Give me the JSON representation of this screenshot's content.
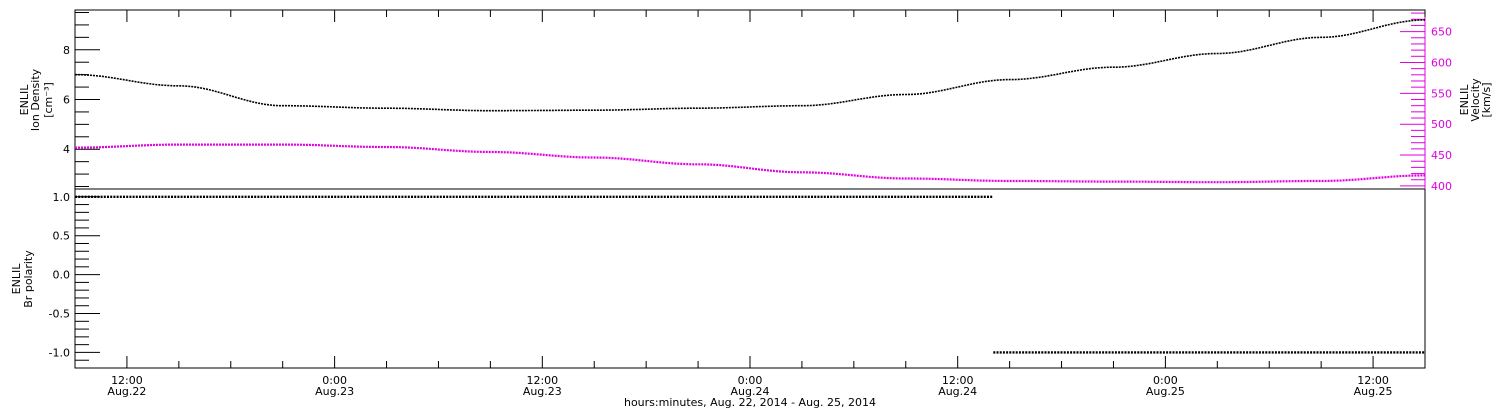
{
  "chart_data": [
    {
      "type": "line",
      "panel": "top",
      "ylabel": [
        "ENLIL",
        "Ion Density",
        "[cm⁻³]"
      ],
      "ylabel_right": [
        "ENLIL",
        "Velocity",
        "[km/s]"
      ],
      "ylim": [
        2.4,
        9.6
      ],
      "ylim_right": [
        395,
        685
      ],
      "yticks": [
        4,
        6,
        8
      ],
      "yticks_right": [
        400,
        450,
        500,
        550,
        600,
        650
      ],
      "colors": {
        "density": "#000000",
        "velocity": "#e000e0"
      },
      "series": [
        {
          "axis": "left",
          "x": [
            "2014-08-22 09:00",
            "2014-08-22 15:00",
            "2014-08-22 21:00",
            "2014-08-23 03:00",
            "2014-08-23 09:00",
            "2014-08-23 15:00",
            "2014-08-23 21:00",
            "2014-08-24 03:00",
            "2014-08-24 09:00",
            "2014-08-24 15:00",
            "2014-08-24 21:00",
            "2014-08-25 03:00",
            "2014-08-25 09:00",
            "2014-08-25 15:00"
          ],
          "values": [
            7.0,
            6.55,
            5.75,
            5.65,
            5.55,
            5.57,
            5.65,
            5.75,
            6.2,
            6.8,
            7.3,
            7.85,
            8.5,
            9.2
          ]
        },
        {
          "axis": "right",
          "x": [
            "2014-08-22 09:00",
            "2014-08-22 15:00",
            "2014-08-22 21:00",
            "2014-08-23 03:00",
            "2014-08-23 09:00",
            "2014-08-23 15:00",
            "2014-08-23 21:00",
            "2014-08-24 03:00",
            "2014-08-24 09:00",
            "2014-08-24 15:00",
            "2014-08-24 21:00",
            "2014-08-25 03:00",
            "2014-08-25 09:00",
            "2014-08-25 15:00"
          ],
          "values": [
            462,
            467,
            467,
            463,
            455,
            446,
            435,
            422,
            412,
            408,
            407,
            406,
            408,
            417
          ]
        }
      ]
    },
    {
      "type": "scatter",
      "panel": "bottom",
      "ylabel": [
        "ENLIL",
        "Br polarity"
      ],
      "ylim": [
        -1.2,
        1.1
      ],
      "yticks": [
        -1.0,
        -0.5,
        0.0,
        0.5,
        1.0
      ],
      "yticklabels": [
        "-1.0",
        "-0.5",
        "0.0",
        "0.5",
        "1.0"
      ],
      "series": [
        {
          "x_start": "2014-08-22 09:00",
          "x_end": "2014-08-24 14:00",
          "value": 1.0
        },
        {
          "x_start": "2014-08-24 14:00",
          "x_end": "2014-08-25 15:00",
          "value": -1.0
        }
      ]
    }
  ],
  "xaxis": {
    "range": [
      "2014-08-22 09:00",
      "2014-08-25 15:00"
    ],
    "ticks": [
      {
        "time": "2014-08-22 12:00",
        "label": "12:00",
        "date": "Aug.22"
      },
      {
        "time": "2014-08-23 00:00",
        "label": "0:00",
        "date": "Aug.23"
      },
      {
        "time": "2014-08-23 12:00",
        "label": "12:00",
        "date": "Aug.23"
      },
      {
        "time": "2014-08-24 00:00",
        "label": "0:00",
        "date": "Aug.24"
      },
      {
        "time": "2014-08-24 12:00",
        "label": "12:00",
        "date": "Aug.24"
      },
      {
        "time": "2014-08-25 00:00",
        "label": "0:00",
        "date": "Aug.25"
      },
      {
        "time": "2014-08-25 12:00",
        "label": "12:00",
        "date": "Aug.25"
      }
    ],
    "xlabel": "hours:minutes, Aug. 22, 2014 - Aug. 25, 2014"
  }
}
